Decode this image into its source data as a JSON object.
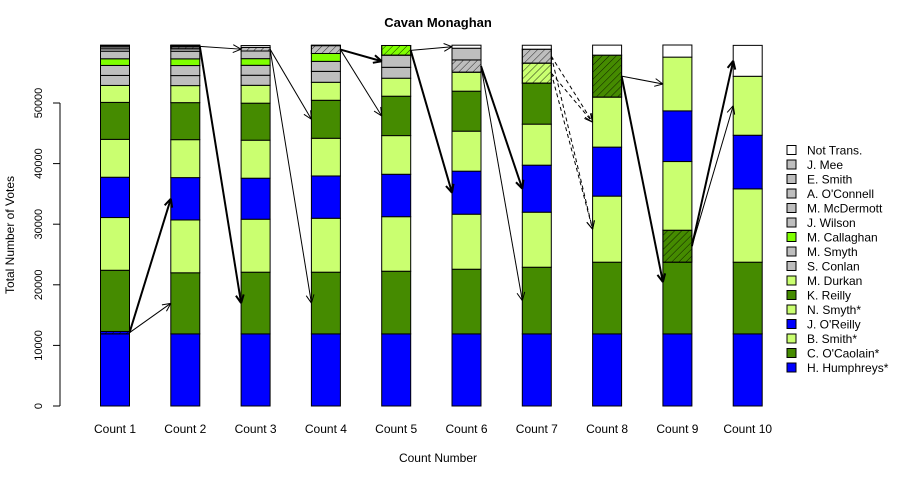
{
  "chart_data": {
    "type": "bar",
    "stacked": true,
    "title": "Cavan Monaghan",
    "xlabel": "Count Number",
    "ylabel": "Total Number of Votes",
    "ylim": [
      0,
      60000
    ],
    "yticks": [
      0,
      10000,
      20000,
      30000,
      40000,
      50000
    ],
    "ytick_labels": [
      "0",
      "10000",
      "20000",
      "30000",
      "40000",
      "50000"
    ],
    "legend_position": "right",
    "categories": [
      "Count 1",
      "Count 2",
      "Count 3",
      "Count 4",
      "Count 5",
      "Count 6",
      "Count 7",
      "Count 8",
      "Count 9",
      "Count 10"
    ],
    "candidates": [
      {
        "name": "H. Humphreys*",
        "color": "#0000FF"
      },
      {
        "name": "C. O'Caolain*",
        "color": "#458B00"
      },
      {
        "name": "B. Smith*",
        "color": "#CAFF70"
      },
      {
        "name": "J. O'Reilly",
        "color": "#0000FF"
      },
      {
        "name": "N. Smyth*",
        "color": "#CAFF70"
      },
      {
        "name": "K. Reilly",
        "color": "#458B00"
      },
      {
        "name": "M. Durkan",
        "color": "#CAFF70"
      },
      {
        "name": "S. Conlan",
        "color": "#BEBEBE"
      },
      {
        "name": "M. Smyth",
        "color": "#BEBEBE"
      },
      {
        "name": "M. Callaghan",
        "color": "#7FFF00"
      },
      {
        "name": "J. Wilson",
        "color": "#BEBEBE"
      },
      {
        "name": "M. McDermott",
        "color": "#BEBEBE"
      },
      {
        "name": "A. O'Connell",
        "color": "#BEBEBE"
      },
      {
        "name": "E. Smith",
        "color": "#BEBEBE"
      },
      {
        "name": "J. Mee",
        "color": "#BEBEBE"
      },
      {
        "name": "Not Trans.",
        "color": "#FFFFFF"
      }
    ],
    "series_by_count": [
      {
        "values": [
          12300,
          10100,
          8700,
          6650,
          6250,
          6100,
          2800,
          1650,
          1650,
          1100,
          1250,
          400,
          300,
          200,
          100,
          0
        ],
        "transferred": {
          "0": 400
        }
      },
      {
        "values": [
          11900,
          10080,
          8720,
          6990,
          6260,
          6110,
          2810,
          1655,
          1655,
          1105,
          1255,
          405,
          300,
          200,
          100,
          0
        ],
        "transferred": {
          "12": 300,
          "13": 200,
          "14": 100
        }
      },
      {
        "values": [
          11900,
          10180,
          8740,
          6770,
          6270,
          6110,
          2950,
          1660,
          1640,
          1100,
          1260,
          600,
          0,
          0,
          0,
          300
        ],
        "transferred": {
          "11": 600
        }
      },
      {
        "values": [
          11900,
          10180,
          8900,
          6980,
          6220,
          6270,
          2970,
          1800,
          1650,
          1300,
          1300,
          0,
          0,
          0,
          0,
          80
        ],
        "transferred": {
          "10": 1300
        }
      },
      {
        "values": [
          11900,
          10340,
          9000,
          7000,
          6380,
          6500,
          2970,
          1800,
          2000,
          1600,
          0,
          0,
          0,
          0,
          0,
          0
        ],
        "transferred": {
          "9": 1600
        }
      },
      {
        "values": [
          11900,
          10670,
          9080,
          7100,
          6600,
          6600,
          3130,
          2030,
          1930,
          0,
          0,
          0,
          0,
          0,
          0,
          500
        ],
        "transferred": {
          "7": 2030
        }
      },
      {
        "values": [
          11900,
          11000,
          9080,
          7760,
          6770,
          6770,
          3300,
          0,
          2300,
          0,
          0,
          0,
          0,
          0,
          0,
          650
        ],
        "transferred": {
          "6": 3300,
          "8": 2300
        }
      },
      {
        "values": [
          11900,
          11830,
          10900,
          8090,
          8250,
          6930,
          0,
          0,
          0,
          0,
          0,
          0,
          0,
          0,
          0,
          1650
        ],
        "transferred": {
          "5": 6930
        }
      },
      {
        "values": [
          11900,
          17110,
          11330,
          8360,
          8870,
          0,
          0,
          0,
          0,
          0,
          0,
          0,
          0,
          0,
          0,
          2000
        ],
        "transferred": {
          "1": 5280
        }
      },
      {
        "values": [
          11900,
          11830,
          12100,
          8850,
          9730,
          0,
          0,
          0,
          0,
          0,
          0,
          0,
          0,
          0,
          0,
          5100
        ],
        "transferred": {}
      }
    ],
    "transfers": [
      {
        "from_count": 0,
        "from": 0,
        "to_count": 1,
        "to": 3,
        "style": "thick"
      },
      {
        "from_count": 0,
        "from": 0,
        "to_count": 1,
        "to": 1,
        "style": "thin"
      },
      {
        "from_count": 1,
        "from": 13,
        "to_count": 2,
        "to": 1,
        "style": "thick"
      },
      {
        "from_count": 1,
        "from": 13,
        "to_count": 2,
        "to": 11,
        "style": "thin"
      },
      {
        "from_count": 2,
        "from": 11,
        "to_count": 3,
        "to": 5,
        "style": "thin"
      },
      {
        "from_count": 2,
        "from": 11,
        "to_count": 3,
        "to": 1,
        "style": "thin"
      },
      {
        "from_count": 3,
        "from": 10,
        "to_count": 4,
        "to": 8,
        "style": "thick"
      },
      {
        "from_count": 3,
        "from": 10,
        "to_count": 4,
        "to": 5,
        "style": "thin"
      },
      {
        "from_count": 4,
        "from": 9,
        "to_count": 5,
        "to": 15,
        "style": "thin"
      },
      {
        "from_count": 4,
        "from": 9,
        "to_count": 5,
        "to": 3,
        "style": "thick"
      },
      {
        "from_count": 5,
        "from": 7,
        "to_count": 6,
        "to": 3,
        "style": "thick"
      },
      {
        "from_count": 5,
        "from": 7,
        "to_count": 6,
        "to": 1,
        "style": "thin"
      },
      {
        "from_count": 6,
        "from": 8,
        "to_count": 7,
        "to": 4,
        "style": "dashed"
      },
      {
        "from_count": 6,
        "from": 8,
        "to_count": 7,
        "to": 2,
        "style": "dashed"
      },
      {
        "from_count": 6,
        "from": 6,
        "to_count": 7,
        "to": 4,
        "style": "dashed"
      },
      {
        "from_count": 6,
        "from": 6,
        "to_count": 7,
        "to": 2,
        "style": "dashed"
      },
      {
        "from_count": 7,
        "from": 5,
        "to_count": 8,
        "to": 4,
        "style": "thin"
      },
      {
        "from_count": 7,
        "from": 5,
        "to_count": 8,
        "to": 1,
        "style": "thick"
      },
      {
        "from_count": 8,
        "from": 1,
        "to_count": 9,
        "to": 15,
        "style": "thick"
      },
      {
        "from_count": 8,
        "from": 1,
        "to_count": 9,
        "to": 4,
        "style": "thin"
      }
    ]
  }
}
